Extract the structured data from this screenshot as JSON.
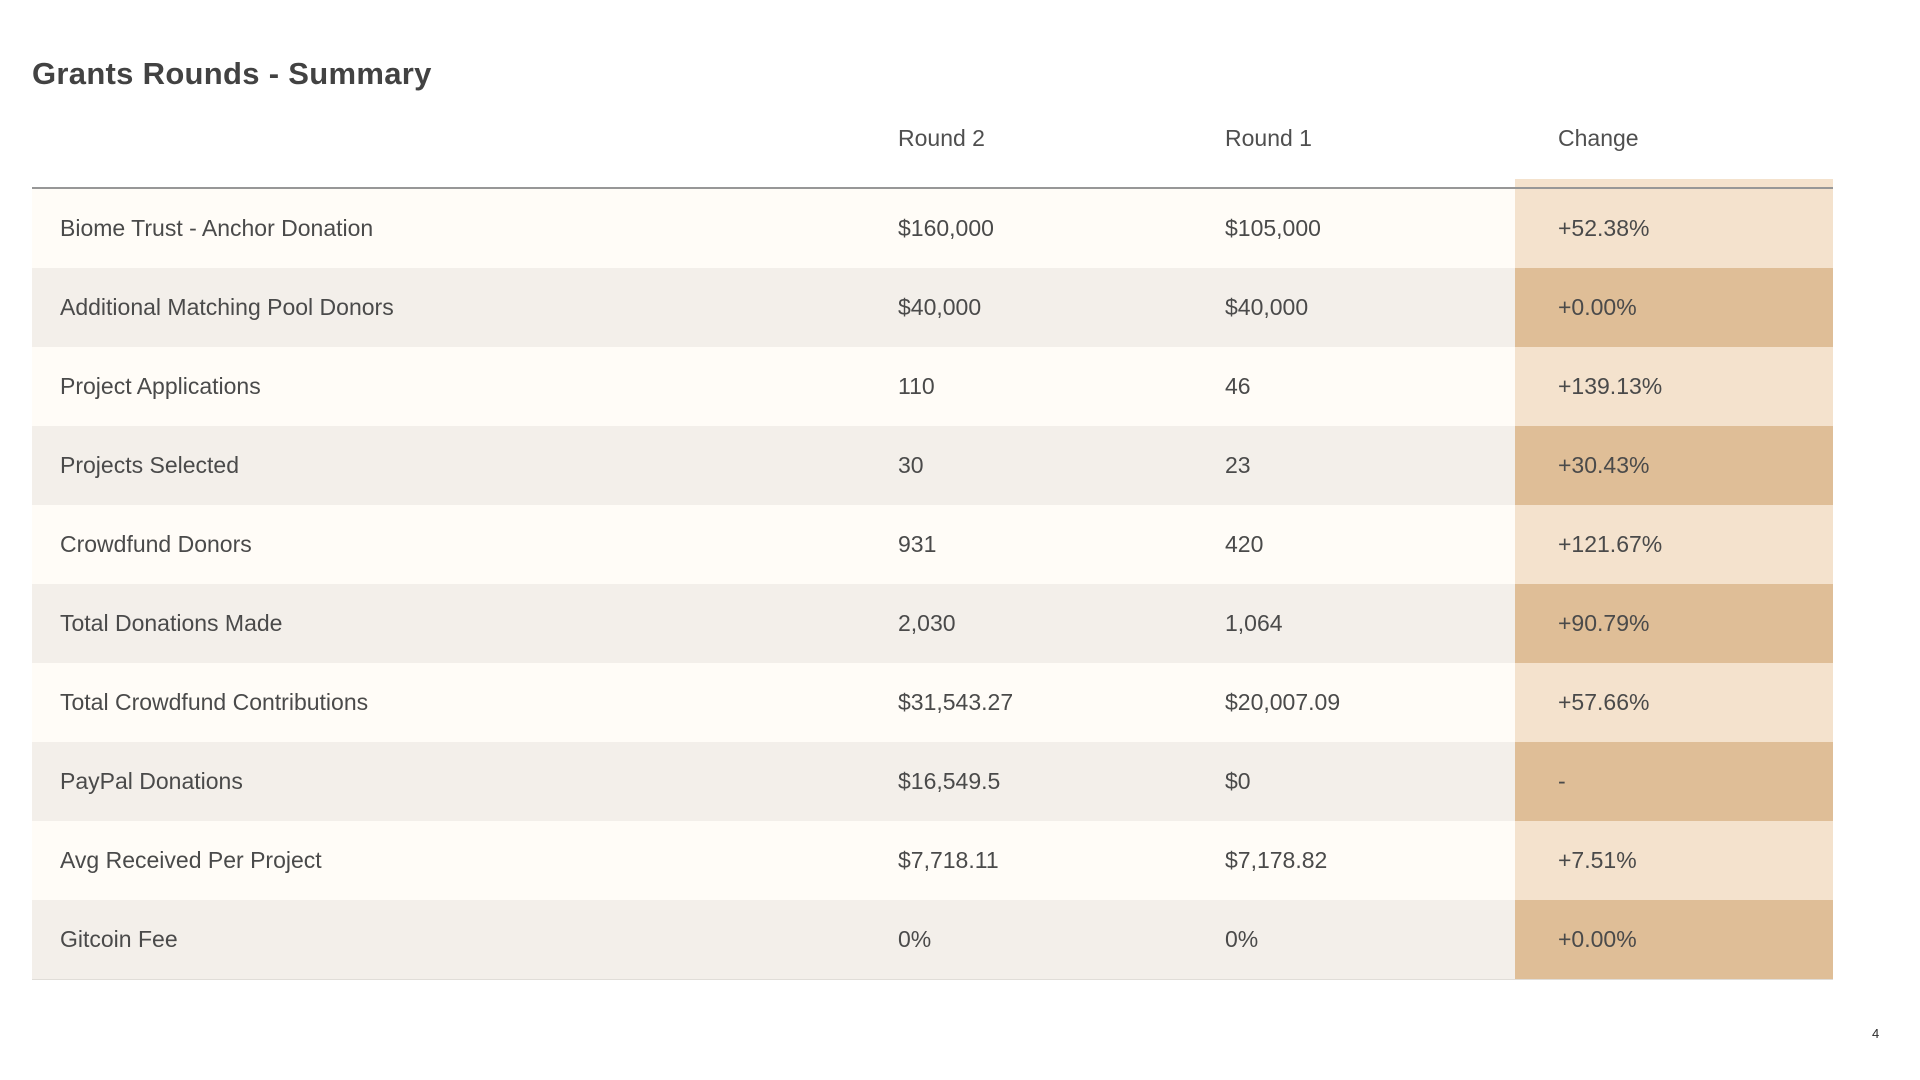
{
  "page": {
    "title": "Grants Rounds - Summary",
    "page_number": "4"
  },
  "table": {
    "columns": [
      "",
      "Round 2",
      "Round 1",
      "Change"
    ],
    "rows": [
      {
        "label": "Biome Trust - Anchor Donation",
        "round2": "$160,000",
        "round1": "$105,000",
        "change": "+52.38%"
      },
      {
        "label": "Additional Matching Pool Donors",
        "round2": "$40,000",
        "round1": "$40,000",
        "change": "+0.00%"
      },
      {
        "label": "Project Applications",
        "round2": "110",
        "round1": "46",
        "change": "+139.13%"
      },
      {
        "label": "Projects Selected",
        "round2": "30",
        "round1": "23",
        "change": "+30.43%"
      },
      {
        "label": "Crowdfund Donors",
        "round2": "931",
        "round1": "420",
        "change": "+121.67%"
      },
      {
        "label": "Total Donations Made",
        "round2": "2,030",
        "round1": "1,064",
        "change": "+90.79%"
      },
      {
        "label": "Total Crowdfund Contributions",
        "round2": "$31,543.27",
        "round1": "$20,007.09",
        "change": "+57.66%"
      },
      {
        "label": "PayPal Donations",
        "round2": "$16,549.5",
        "round1": "$0",
        "change": "-"
      },
      {
        "label": "Avg Received Per Project",
        "round2": "$7,718.11",
        "round1": "$7,178.82",
        "change": "+7.51%"
      },
      {
        "label": "Gitcoin Fee",
        "round2": "0%",
        "round1": "0%",
        "change": "+0.00%"
      }
    ]
  },
  "colors": {
    "row_odd": "#FFFCF7",
    "row_even": "#F3EFEA",
    "change_light": "#F4E2CD",
    "change_dark": "#DFBE97",
    "divider": "#979797"
  }
}
